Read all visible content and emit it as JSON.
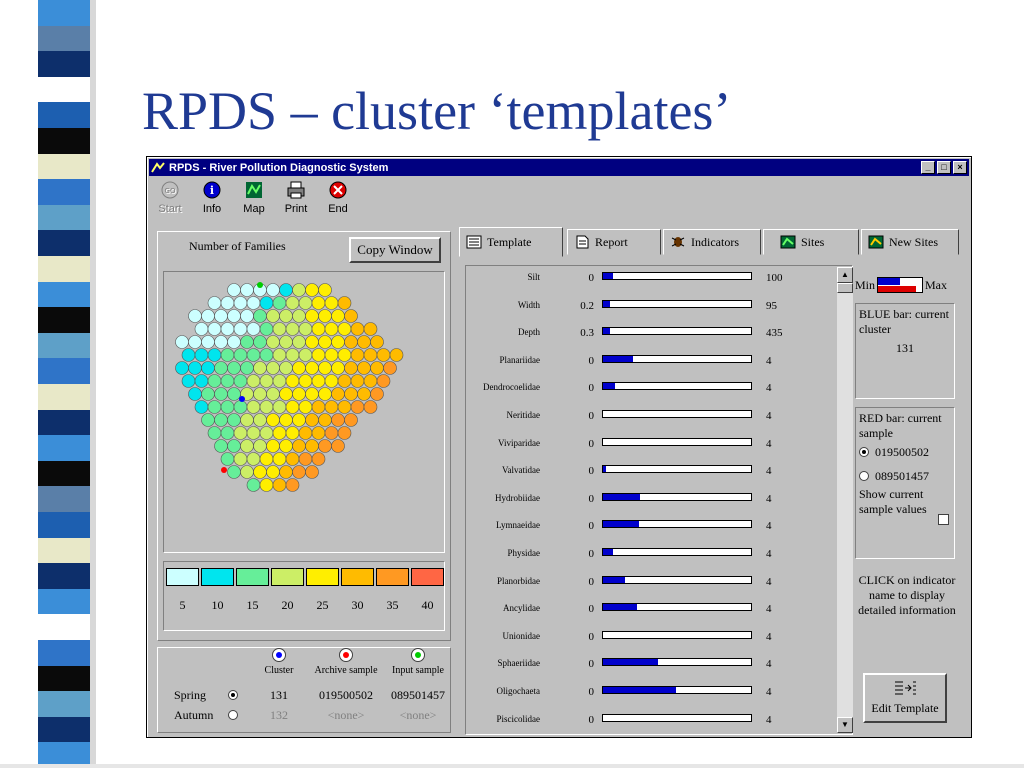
{
  "slide": {
    "title": "RPDS – cluster ‘templates’"
  },
  "window": {
    "title": "RPDS - River Pollution Diagnostic System",
    "controls": [
      "_",
      "□",
      "×"
    ]
  },
  "toolbar": [
    {
      "label": "Start",
      "icon": "start-icon",
      "enabled": false
    },
    {
      "label": "Info",
      "icon": "info-icon",
      "enabled": true
    },
    {
      "label": "Map",
      "icon": "map-icon",
      "enabled": true
    },
    {
      "label": "Print",
      "icon": "printer-icon",
      "enabled": true
    },
    {
      "label": "End",
      "icon": "end-icon",
      "enabled": true
    }
  ],
  "left": {
    "map_label": "Number of Families",
    "copy_button": "Copy Window",
    "legend": {
      "labels": [
        "5",
        "10",
        "15",
        "20",
        "25",
        "30",
        "35",
        "40"
      ],
      "colors": [
        "#ccffff",
        "#00e5ee",
        "#66ee99",
        "#ccee66",
        "#ffee00",
        "#ffbb00",
        "#ff9922",
        "#ff6644"
      ]
    }
  },
  "selection": {
    "columns": [
      "Cluster",
      "Archive sample",
      "Input sample"
    ],
    "column_colors": [
      "#0000ff",
      "#ff0000",
      "#00cc00"
    ],
    "rows": [
      {
        "label": "Spring",
        "selected": true,
        "values": [
          "131",
          "019500502",
          "089501457"
        ]
      },
      {
        "label": "Autumn",
        "selected": false,
        "values": [
          "132",
          "<none>",
          "<none>"
        ]
      }
    ]
  },
  "tabs": [
    {
      "label": "Template",
      "icon": "template-icon",
      "active": true
    },
    {
      "label": "Report",
      "icon": "report-icon",
      "active": false
    },
    {
      "label": "Indicators",
      "icon": "indicators-icon",
      "active": false
    },
    {
      "label": "Sites",
      "icon": "sites-icon",
      "active": false
    },
    {
      "label": "New Sites",
      "icon": "new-sites-icon",
      "active": false
    }
  ],
  "indicators": [
    {
      "name": "Silt",
      "min": "0",
      "max": "100",
      "level": 0.07
    },
    {
      "name": "Width",
      "min": "0.2",
      "max": "95",
      "level": 0.05
    },
    {
      "name": "Depth",
      "min": "0.3",
      "max": "435",
      "level": 0.05
    },
    {
      "name": "Planariidae",
      "min": "0",
      "max": "4",
      "level": 0.2
    },
    {
      "name": "Dendrocoelidae",
      "min": "0",
      "max": "4",
      "level": 0.08
    },
    {
      "name": "Neritidae",
      "min": "0",
      "max": "4",
      "level": 0.0
    },
    {
      "name": "Viviparidae",
      "min": "0",
      "max": "4",
      "level": 0.0
    },
    {
      "name": "Valvatidae",
      "min": "0",
      "max": "4",
      "level": 0.02
    },
    {
      "name": "Hydrobiidae",
      "min": "0",
      "max": "4",
      "level": 0.25
    },
    {
      "name": "Lymnaeidae",
      "min": "0",
      "max": "4",
      "level": 0.24
    },
    {
      "name": "Physidae",
      "min": "0",
      "max": "4",
      "level": 0.07
    },
    {
      "name": "Planorbidae",
      "min": "0",
      "max": "4",
      "level": 0.15
    },
    {
      "name": "Ancylidae",
      "min": "0",
      "max": "4",
      "level": 0.23
    },
    {
      "name": "Unionidae",
      "min": "0",
      "max": "4",
      "level": 0.0
    },
    {
      "name": "Sphaeriidae",
      "min": "0",
      "max": "4",
      "level": 0.37
    },
    {
      "name": "Oligochaeta",
      "min": "0",
      "max": "4",
      "level": 0.49
    },
    {
      "name": "Piscicolidae",
      "min": "0",
      "max": "4",
      "level": 0.0
    }
  ],
  "right_panel": {
    "min_label": "Min",
    "max_label": "Max",
    "blue_text": "BLUE bar: current cluster",
    "blue_value": "131",
    "red_text": "RED bar: current sample",
    "sample_options": [
      {
        "label": "019500502",
        "selected": true
      },
      {
        "label": "089501457",
        "selected": false
      }
    ],
    "show_label": "Show current sample values",
    "hint": "CLICK on indicator name to display detailed information",
    "edit_button": "Edit Template"
  }
}
